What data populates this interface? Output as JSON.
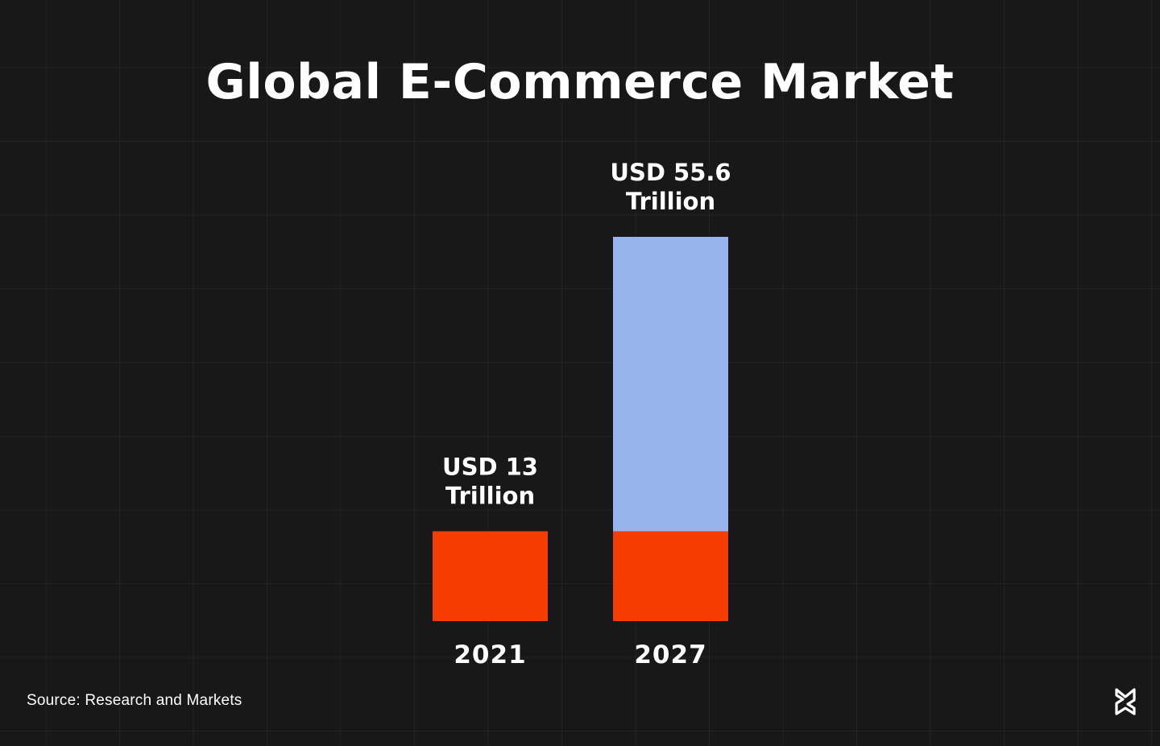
{
  "chart_data": {
    "type": "bar",
    "title": "Global E-Commerce Market",
    "categories": [
      "2021",
      "2027"
    ],
    "values": [
      13,
      55.6
    ],
    "data_labels": [
      [
        "USD 13",
        "Trillion"
      ],
      [
        "USD 55.6",
        "Trillion"
      ]
    ],
    "stacked_base": 13,
    "unit": "USD Trillion",
    "ylim": [
      0,
      55.6
    ],
    "grid": true,
    "legend": "none",
    "colors": {
      "base": "#f53d00",
      "growth": "#97b4ef",
      "background": "#181818"
    }
  },
  "source": "Source: Research and Markets",
  "logo_icon": "brand-logo-icon"
}
